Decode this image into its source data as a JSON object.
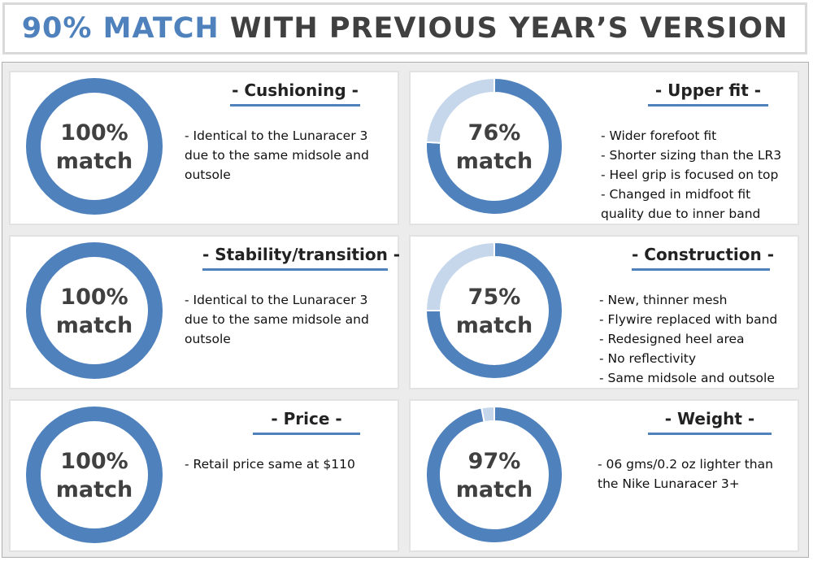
{
  "header": {
    "accent": "90% MATCH",
    "rest": "WITH PREVIOUS YEAR’S VERSION"
  },
  "colors": {
    "ring_fill": "#4f81bd",
    "ring_track": "#c6d7ec",
    "title_underline": "#4f81bd"
  },
  "cards": [
    {
      "title": "- Cushioning -",
      "ring_pct": "100%",
      "ring_word": "match",
      "bullets": [
        "- Identical to the Lunaracer 3\ndue to the same midsole and\noutsole"
      ]
    },
    {
      "title": "- Upper fit -",
      "ring_pct": "76%",
      "ring_word": "match",
      "bullets": [
        "- Wider forefoot fit",
        "- Shorter sizing than the LR3",
        "- Heel grip is focused on top",
        "- Changed in midfoot fit\n  quality due to inner band"
      ]
    },
    {
      "title": "- Stability/transition -",
      "ring_pct": "100%",
      "ring_word": "match",
      "bullets": [
        "- Identical to the Lunaracer 3\ndue to the same midsole and\noutsole"
      ]
    },
    {
      "title": "- Construction -",
      "ring_pct": "75%",
      "ring_word": "match",
      "bullets": [
        "- New, thinner mesh",
        "- Flywire replaced with band",
        "- Redesigned heel area",
        "- No reflectivity",
        "- Same midsole and outsole"
      ]
    },
    {
      "title": "- Price -",
      "ring_pct": "100%",
      "ring_word": "match",
      "bullets": [
        "-  Retail price same at $110"
      ]
    },
    {
      "title": "- Weight -",
      "ring_pct": "97%",
      "ring_word": "match",
      "bullets": [
        "- 06 gms/0.2 oz lighter than\nthe Nike Lunaracer 3+"
      ]
    }
  ],
  "chart_data": {
    "type": "pie",
    "charts": [
      {
        "name": "Cushioning",
        "match": 100,
        "remainder": 0
      },
      {
        "name": "Upper fit",
        "match": 76,
        "remainder": 24
      },
      {
        "name": "Stability/transition",
        "match": 100,
        "remainder": 0
      },
      {
        "name": "Construction",
        "match": 75,
        "remainder": 25
      },
      {
        "name": "Price",
        "match": 100,
        "remainder": 0
      },
      {
        "name": "Weight",
        "match": 97,
        "remainder": 3
      }
    ]
  }
}
